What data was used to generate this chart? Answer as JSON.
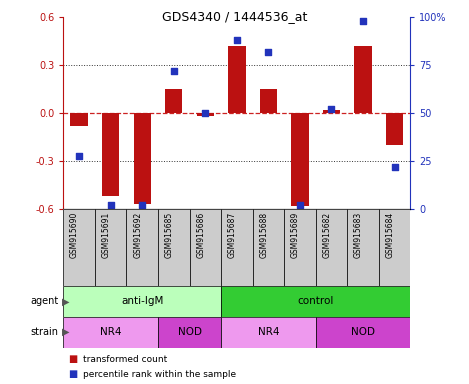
{
  "title": "GDS4340 / 1444536_at",
  "samples": [
    "GSM915690",
    "GSM915691",
    "GSM915692",
    "GSM915685",
    "GSM915686",
    "GSM915687",
    "GSM915688",
    "GSM915689",
    "GSM915682",
    "GSM915683",
    "GSM915684"
  ],
  "bar_values": [
    -0.08,
    -0.52,
    -0.57,
    0.15,
    -0.02,
    0.42,
    0.15,
    -0.58,
    0.02,
    0.42,
    -0.2
  ],
  "percentile_values": [
    28,
    2,
    2,
    72,
    50,
    88,
    82,
    2,
    52,
    98,
    22
  ],
  "ylim_left": [
    -0.6,
    0.6
  ],
  "ylim_right": [
    0,
    100
  ],
  "yticks_left": [
    -0.6,
    -0.3,
    0.0,
    0.3,
    0.6
  ],
  "yticks_right": [
    0,
    25,
    50,
    75,
    100
  ],
  "ytick_labels_right": [
    "0",
    "25",
    "50",
    "75",
    "100%"
  ],
  "bar_color": "#bb1111",
  "dot_color": "#2233bb",
  "zero_line_color": "#cc2222",
  "dotted_line_color": "#333333",
  "agent_groups": [
    {
      "label": "anti-IgM",
      "start": 0,
      "end": 5,
      "color": "#bbffbb"
    },
    {
      "label": "control",
      "start": 5,
      "end": 11,
      "color": "#33cc33"
    }
  ],
  "strain_groups": [
    {
      "label": "NR4",
      "start": 0,
      "end": 3,
      "color": "#ee99ee"
    },
    {
      "label": "NOD",
      "start": 3,
      "end": 5,
      "color": "#cc44cc"
    },
    {
      "label": "NR4",
      "start": 5,
      "end": 8,
      "color": "#ee99ee"
    },
    {
      "label": "NOD",
      "start": 8,
      "end": 11,
      "color": "#cc44cc"
    }
  ],
  "sample_box_color": "#cccccc",
  "legend_bar_color": "#bb1111",
  "legend_dot_color": "#2233bb",
  "legend_label1": "transformed count",
  "legend_label2": "percentile rank within the sample"
}
